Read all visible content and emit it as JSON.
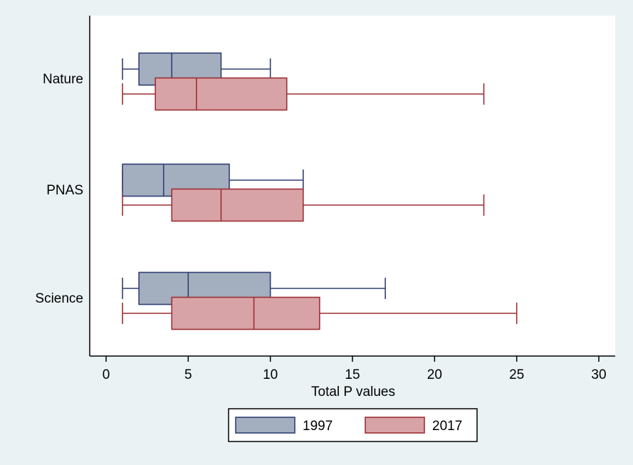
{
  "chart_data": {
    "type": "box",
    "orientation": "horizontal",
    "title": "",
    "xlabel": "Total P values",
    "ylabel": "",
    "xlim": [
      0,
      30
    ],
    "xticks": [
      0,
      5,
      10,
      15,
      20,
      25,
      30
    ],
    "categories": [
      "Nature",
      "PNAS",
      "Science"
    ],
    "grid": false,
    "legend_position": "bottom",
    "series": [
      {
        "name": "1997",
        "color": "#a3aebf",
        "stroke": "#2f3f73",
        "boxes": [
          {
            "category": "Nature",
            "min": 1,
            "q1": 2,
            "median": 4,
            "q3": 7,
            "max": 10
          },
          {
            "category": "PNAS",
            "min": 1,
            "q1": 1,
            "median": 3.5,
            "q3": 7.5,
            "max": 12
          },
          {
            "category": "Science",
            "min": 1,
            "q1": 2,
            "median": 5,
            "q3": 10,
            "max": 17
          }
        ]
      },
      {
        "name": "2017",
        "color": "#d8a3a7",
        "stroke": "#9c2f34",
        "boxes": [
          {
            "category": "Nature",
            "min": 1,
            "q1": 3,
            "median": 5.5,
            "q3": 11,
            "max": 23
          },
          {
            "category": "PNAS",
            "min": 1,
            "q1": 4,
            "median": 7,
            "q3": 12,
            "max": 23
          },
          {
            "category": "Science",
            "min": 1,
            "q1": 4,
            "median": 9,
            "q3": 13,
            "max": 25
          }
        ]
      }
    ]
  }
}
